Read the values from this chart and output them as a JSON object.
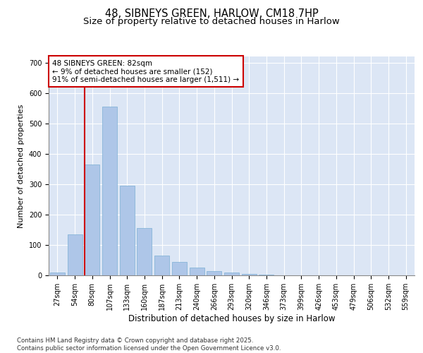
{
  "title1": "48, SIBNEYS GREEN, HARLOW, CM18 7HP",
  "title2": "Size of property relative to detached houses in Harlow",
  "xlabel": "Distribution of detached houses by size in Harlow",
  "ylabel": "Number of detached properties",
  "bar_labels": [
    "27sqm",
    "54sqm",
    "80sqm",
    "107sqm",
    "133sqm",
    "160sqm",
    "187sqm",
    "213sqm",
    "240sqm",
    "266sqm",
    "293sqm",
    "320sqm",
    "346sqm",
    "373sqm",
    "399sqm",
    "426sqm",
    "453sqm",
    "479sqm",
    "506sqm",
    "532sqm",
    "559sqm"
  ],
  "bar_values": [
    10,
    135,
    365,
    555,
    295,
    155,
    65,
    45,
    25,
    15,
    10,
    5,
    2,
    1,
    0,
    0,
    0,
    0,
    0,
    0,
    0
  ],
  "bar_color": "#aec6e8",
  "bar_edge_color": "#7bafd4",
  "vline_x_index": 2,
  "vline_color": "#cc0000",
  "annotation_text": "48 SIBNEYS GREEN: 82sqm\n← 9% of detached houses are smaller (152)\n91% of semi-detached houses are larger (1,511) →",
  "annotation_box_color": "#cc0000",
  "background_color": "#dce6f5",
  "ylim": [
    0,
    720
  ],
  "yticks": [
    0,
    100,
    200,
    300,
    400,
    500,
    600,
    700
  ],
  "footer_text": "Contains HM Land Registry data © Crown copyright and database right 2025.\nContains public sector information licensed under the Open Government Licence v3.0.",
  "title_fontsize": 10.5,
  "subtitle_fontsize": 9.5,
  "tick_fontsize": 7,
  "xlabel_fontsize": 8.5,
  "ylabel_fontsize": 8
}
